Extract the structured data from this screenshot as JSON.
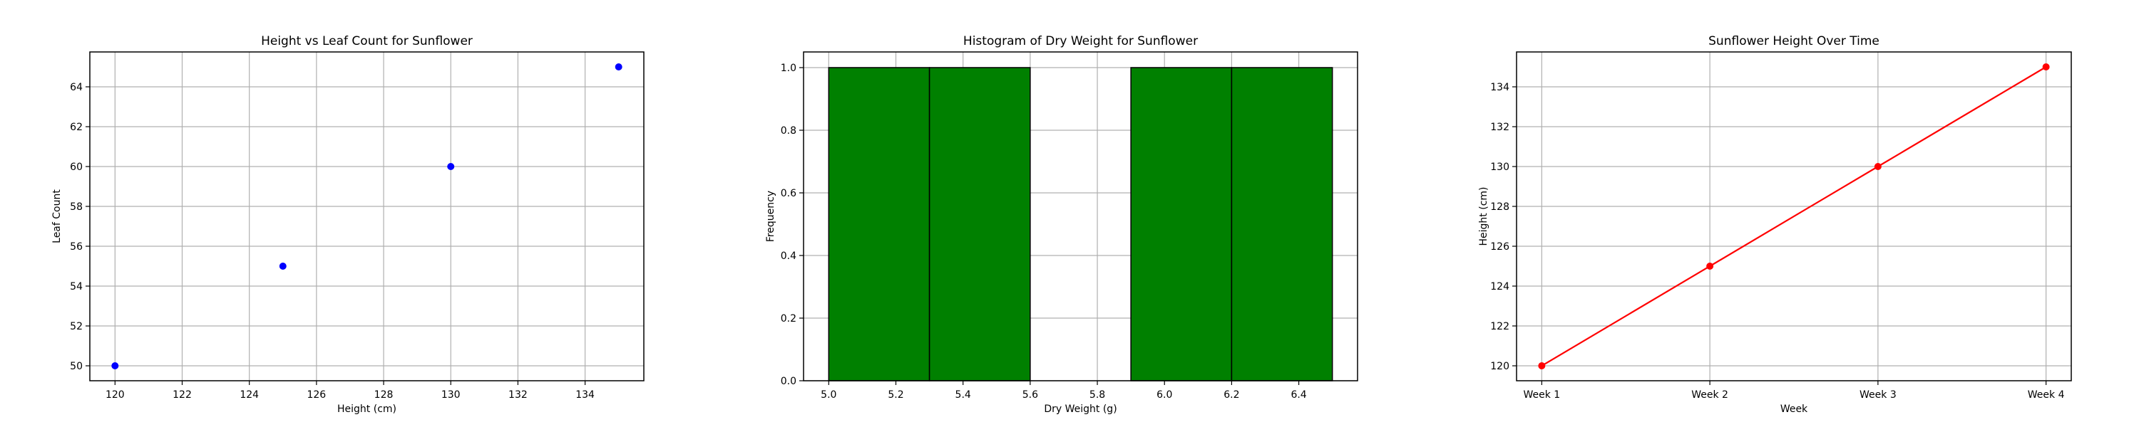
{
  "chart_data": [
    {
      "type": "scatter",
      "title": "Height vs Leaf Count for Sunflower",
      "xlabel": "Height (cm)",
      "ylabel": "Leaf Count",
      "x": [
        120,
        125,
        130,
        135
      ],
      "y": [
        50,
        55,
        60,
        65
      ],
      "xlim": [
        119.25,
        135.75
      ],
      "ylim": [
        49.25,
        65.75
      ],
      "xticks": [
        120,
        122,
        124,
        126,
        128,
        130,
        132,
        134
      ],
      "yticks": [
        50,
        52,
        54,
        56,
        58,
        60,
        62,
        64
      ],
      "grid": true,
      "color": "#0000ff"
    },
    {
      "type": "bar",
      "title": "Histogram of Dry Weight for Sunflower",
      "xlabel": "Dry Weight (g)",
      "ylabel": "Frequency",
      "bins": [
        {
          "start": 5.0,
          "end": 5.3,
          "count": 1
        },
        {
          "start": 5.3,
          "end": 5.6,
          "count": 1
        },
        {
          "start": 5.6,
          "end": 5.9,
          "count": 0
        },
        {
          "start": 5.9,
          "end": 6.2,
          "count": 1
        },
        {
          "start": 6.2,
          "end": 6.5,
          "count": 1
        }
      ],
      "xlim": [
        4.925,
        6.575
      ],
      "ylim": [
        0,
        1.05
      ],
      "xticks": [
        5.0,
        5.2,
        5.4,
        5.6,
        5.8,
        6.0,
        6.2,
        6.4
      ],
      "yticks": [
        0.0,
        0.2,
        0.4,
        0.6,
        0.8,
        1.0
      ],
      "grid": true,
      "color": "#008000"
    },
    {
      "type": "line",
      "title": "Sunflower Height Over Time",
      "xlabel": "Week",
      "ylabel": "Height (cm)",
      "categories": [
        "Week 1",
        "Week 2",
        "Week 3",
        "Week 4"
      ],
      "values": [
        120,
        125,
        130,
        135
      ],
      "ylim": [
        119.25,
        135.75
      ],
      "yticks": [
        120,
        122,
        124,
        126,
        128,
        130,
        132,
        134
      ],
      "grid": true,
      "color": "#ff0000"
    }
  ]
}
